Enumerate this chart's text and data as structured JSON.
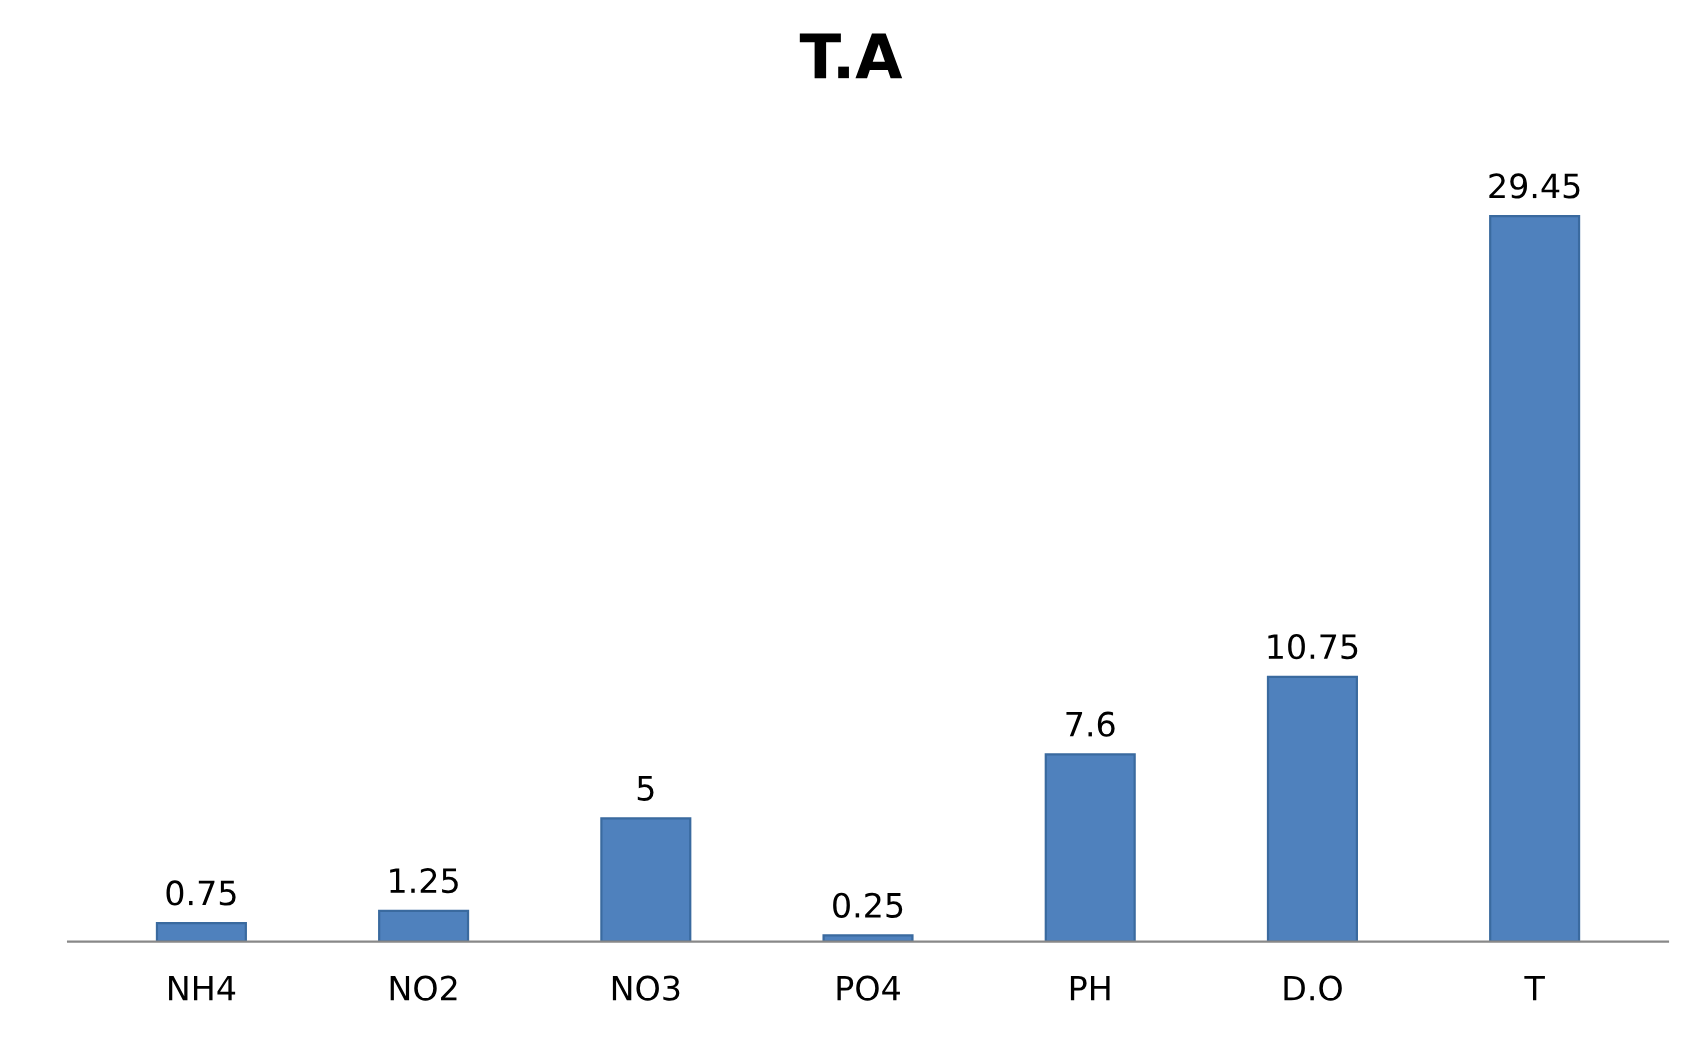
{
  "chart_data": {
    "type": "bar",
    "title": "T.A",
    "categories": [
      "NH4",
      "NO2",
      "NO3",
      "PO4",
      "PH",
      "D.O",
      "T"
    ],
    "values": [
      0.75,
      1.25,
      5,
      0.25,
      7.6,
      10.75,
      29.45
    ],
    "color": "#4f81bd",
    "data_labels": true,
    "grid": false,
    "legend": false
  }
}
